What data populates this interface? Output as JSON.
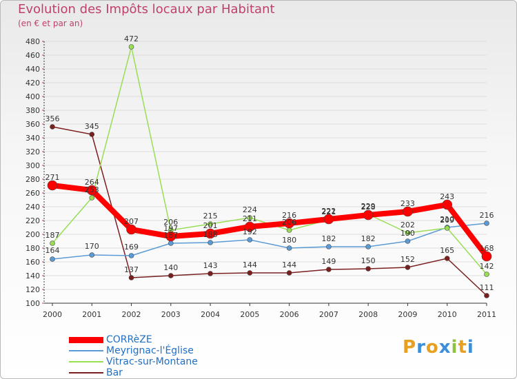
{
  "title": "Evolution des Impôts locaux par Habitant",
  "subtitle": "(en € et par an)",
  "logo": "Proxiti",
  "chart_data": {
    "type": "line",
    "categories": [
      "2000",
      "2001",
      "2002",
      "2003",
      "2004",
      "2005",
      "2006",
      "2007",
      "2008",
      "2009",
      "2010",
      "2011"
    ],
    "ylim": [
      100,
      480
    ],
    "yticks": [
      100,
      120,
      140,
      160,
      180,
      200,
      220,
      240,
      260,
      280,
      300,
      320,
      340,
      360,
      380,
      400,
      420,
      440,
      460,
      480
    ],
    "legend_position": "bottom-left",
    "series": [
      {
        "name": "CORRèZE",
        "color": "#ff0000",
        "values": [
          271,
          264,
          207,
          197,
          201,
          211,
          216,
          222,
          228,
          233,
          243,
          168
        ]
      },
      {
        "name": "Meyrignac-l'Église",
        "color": "#5b9bd5",
        "values": [
          164,
          170,
          169,
          187,
          188,
          192,
          180,
          182,
          182,
          190,
          210,
          216
        ]
      },
      {
        "name": "Vitrac-sur-Montane",
        "color": "#99dd55",
        "values": [
          187,
          253,
          472,
          206,
          215,
          224,
          206,
          221,
          229,
          202,
          209,
          142
        ]
      },
      {
        "name": "Bar",
        "color": "#7a1f1f",
        "values": [
          356,
          345,
          137,
          140,
          143,
          144,
          144,
          149,
          150,
          152,
          165,
          111
        ]
      }
    ]
  }
}
